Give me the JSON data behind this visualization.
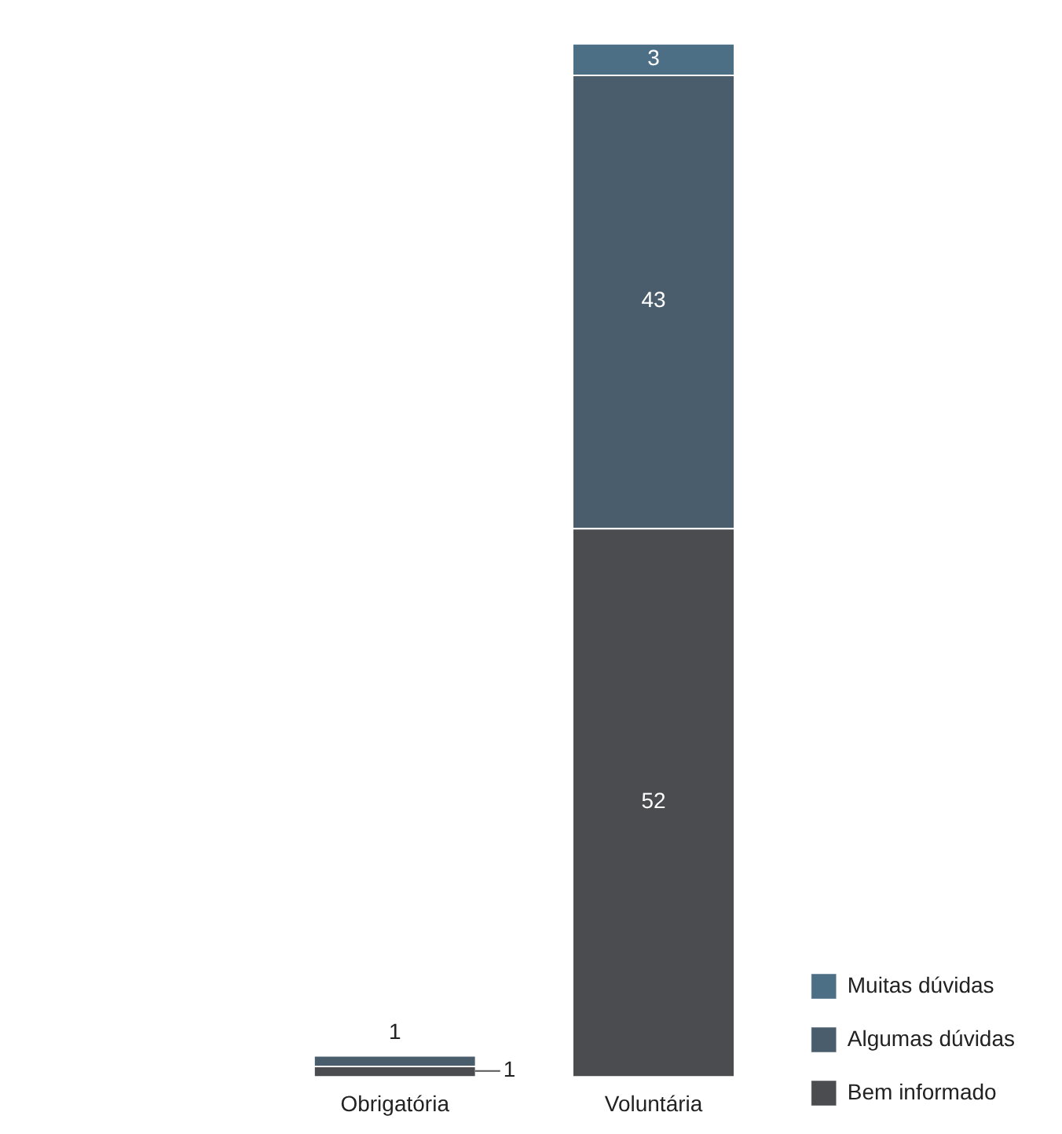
{
  "chart_data": {
    "type": "bar",
    "stacked": true,
    "categories": [
      "Obrigatória",
      "Voluntária"
    ],
    "series": [
      {
        "name": "Bem informado",
        "color": "#4a4c50",
        "values": [
          1,
          52
        ],
        "value_labels": [
          "1",
          "52"
        ]
      },
      {
        "name": "Algumas dúvidas",
        "color": "#4a5d6c",
        "values": [
          1,
          43
        ],
        "value_labels": [
          "1",
          "43"
        ]
      },
      {
        "name": "Muitas dúvidas",
        "color": "#4d6f86",
        "values": [
          null,
          3
        ],
        "value_labels": [
          null,
          "3"
        ]
      }
    ],
    "legend": "bottom right",
    "grid": false
  }
}
